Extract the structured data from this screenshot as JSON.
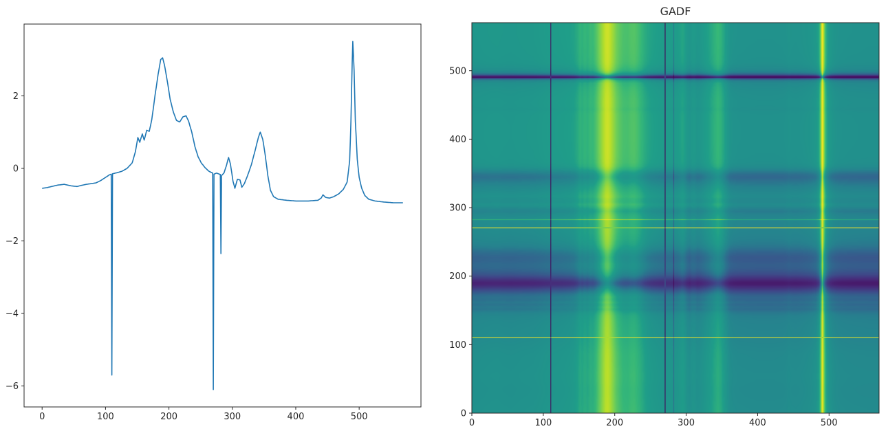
{
  "gadf_plot": {
    "title": "GADF",
    "xtick_labels": [
      "0",
      "100",
      "200",
      "300",
      "400",
      "500"
    ],
    "ytick_labels": [
      "0",
      "100",
      "200",
      "300",
      "400",
      "500"
    ]
  },
  "line_plot": {
    "xtick_labels": [
      "0",
      "100",
      "200",
      "300",
      "400",
      "500"
    ],
    "ytick_labels": [
      "−6",
      "−4",
      "−2",
      "0",
      "2"
    ]
  },
  "style": {
    "line_color": "#1f77b4",
    "axis_color": "#262626",
    "background": "#ffffff"
  },
  "chart_data": [
    {
      "type": "line",
      "title": "",
      "xlabel": "",
      "ylabel": "",
      "xticks": [
        0,
        100,
        200,
        300,
        400,
        500
      ],
      "yticks": [
        -6,
        -4,
        -2,
        0,
        2
      ],
      "xlim": [
        -28.45,
        597.45
      ],
      "ylim": [
        -6.58,
        3.98
      ],
      "n_points": 570,
      "keypoints": [
        [
          0,
          -0.55
        ],
        [
          8,
          -0.53
        ],
        [
          15,
          -0.5
        ],
        [
          25,
          -0.46
        ],
        [
          35,
          -0.44
        ],
        [
          45,
          -0.48
        ],
        [
          55,
          -0.5
        ],
        [
          62,
          -0.47
        ],
        [
          70,
          -0.44
        ],
        [
          78,
          -0.42
        ],
        [
          85,
          -0.4
        ],
        [
          92,
          -0.34
        ],
        [
          100,
          -0.25
        ],
        [
          106,
          -0.18
        ],
        [
          109,
          -0.16
        ],
        [
          110,
          -5.7
        ],
        [
          111,
          -0.15
        ],
        [
          118,
          -0.12
        ],
        [
          126,
          -0.08
        ],
        [
          134,
          0.0
        ],
        [
          142,
          0.15
        ],
        [
          147,
          0.45
        ],
        [
          151,
          0.85
        ],
        [
          154,
          0.72
        ],
        [
          158,
          0.95
        ],
        [
          161,
          0.78
        ],
        [
          165,
          1.05
        ],
        [
          169,
          1.02
        ],
        [
          173,
          1.35
        ],
        [
          178,
          2.0
        ],
        [
          183,
          2.6
        ],
        [
          187,
          3.0
        ],
        [
          190,
          3.05
        ],
        [
          193,
          2.85
        ],
        [
          197,
          2.45
        ],
        [
          202,
          1.9
        ],
        [
          207,
          1.55
        ],
        [
          212,
          1.32
        ],
        [
          217,
          1.28
        ],
        [
          222,
          1.42
        ],
        [
          227,
          1.45
        ],
        [
          231,
          1.3
        ],
        [
          236,
          1.0
        ],
        [
          241,
          0.6
        ],
        [
          246,
          0.32
        ],
        [
          251,
          0.15
        ],
        [
          257,
          0.02
        ],
        [
          263,
          -0.08
        ],
        [
          269,
          -0.13
        ],
        [
          270,
          -6.1
        ],
        [
          271,
          -0.16
        ],
        [
          275,
          -0.13
        ],
        [
          281,
          -0.17
        ],
        [
          282,
          -2.35
        ],
        [
          283,
          -0.2
        ],
        [
          287,
          -0.12
        ],
        [
          291,
          0.1
        ],
        [
          294,
          0.3
        ],
        [
          297,
          0.12
        ],
        [
          301,
          -0.35
        ],
        [
          304,
          -0.55
        ],
        [
          308,
          -0.3
        ],
        [
          312,
          -0.32
        ],
        [
          315,
          -0.52
        ],
        [
          319,
          -0.42
        ],
        [
          324,
          -0.2
        ],
        [
          330,
          0.1
        ],
        [
          336,
          0.5
        ],
        [
          341,
          0.85
        ],
        [
          344,
          1.0
        ],
        [
          348,
          0.8
        ],
        [
          352,
          0.35
        ],
        [
          356,
          -0.2
        ],
        [
          360,
          -0.6
        ],
        [
          365,
          -0.78
        ],
        [
          372,
          -0.85
        ],
        [
          385,
          -0.88
        ],
        [
          400,
          -0.9
        ],
        [
          420,
          -0.9
        ],
        [
          435,
          -0.88
        ],
        [
          440,
          -0.82
        ],
        [
          443,
          -0.73
        ],
        [
          447,
          -0.8
        ],
        [
          453,
          -0.82
        ],
        [
          460,
          -0.78
        ],
        [
          468,
          -0.7
        ],
        [
          475,
          -0.58
        ],
        [
          481,
          -0.38
        ],
        [
          485,
          0.2
        ],
        [
          487,
          1.3
        ],
        [
          489,
          2.9
        ],
        [
          490,
          3.5
        ],
        [
          492,
          2.7
        ],
        [
          494,
          1.3
        ],
        [
          497,
          0.25
        ],
        [
          500,
          -0.25
        ],
        [
          504,
          -0.55
        ],
        [
          509,
          -0.75
        ],
        [
          515,
          -0.85
        ],
        [
          525,
          -0.9
        ],
        [
          540,
          -0.93
        ],
        [
          555,
          -0.95
        ],
        [
          569,
          -0.95
        ]
      ]
    },
    {
      "type": "heatmap",
      "title": "GADF",
      "xticks": [
        0,
        100,
        200,
        300,
        400,
        500
      ],
      "yticks": [
        0,
        100,
        200,
        300,
        400,
        500
      ],
      "extent": [
        0,
        570,
        0,
        570
      ],
      "origin": "lower",
      "value_range": [
        -1,
        1
      ],
      "colormap": "viridis",
      "colormap_anchors": [
        "#440154",
        "#482878",
        "#3e4a89",
        "#31688e",
        "#26828e",
        "#21918c",
        "#1f9e89",
        "#35b779",
        "#6ece58",
        "#b5de2b",
        "#fde725"
      ],
      "derivation": "value(i,j) = sin(phi_i - phi_j), phi = arccos of min-max scaled series from the line plot"
    }
  ]
}
